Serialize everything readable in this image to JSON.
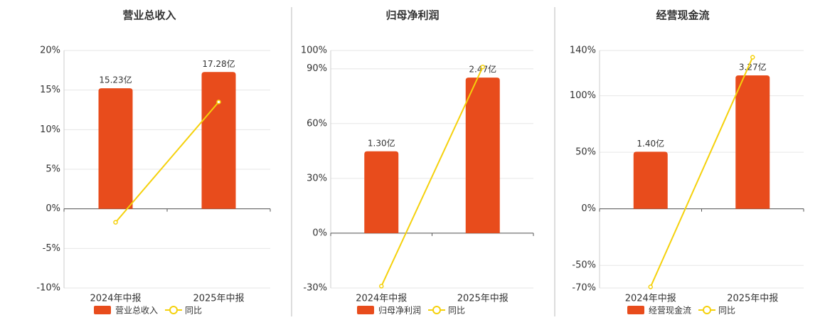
{
  "chart_data": [
    {
      "type": "bar",
      "title": "营业总收入",
      "categories": [
        "2024年中报",
        "2025年中报"
      ],
      "series": [
        {
          "name": "营业总收入",
          "color": "#e84c1c",
          "values": [
            15.23,
            17.28
          ],
          "value_labels": [
            "15.23亿",
            "17.28亿"
          ],
          "axis": "y2"
        },
        {
          "name": "同比",
          "color": "#f5d10c",
          "type": "line",
          "values": [
            -1.7,
            13.5
          ]
        }
      ],
      "ylim": [
        -10,
        20
      ],
      "yticks": [
        {
          "value": -10,
          "label": "-10%"
        },
        {
          "value": -5,
          "label": "-5%"
        },
        {
          "value": 0,
          "label": "0%"
        },
        {
          "value": 5,
          "label": "5%"
        },
        {
          "value": 10,
          "label": "10%"
        },
        {
          "value": 15,
          "label": "15%"
        },
        {
          "value": 20,
          "label": "20%"
        }
      ],
      "y2lim": [
        -10,
        20
      ],
      "grid": true
    },
    {
      "type": "bar",
      "title": "归母净利润",
      "categories": [
        "2024年中报",
        "2025年中报"
      ],
      "series": [
        {
          "name": "归母净利润",
          "color": "#e84c1c",
          "values": [
            1.3,
            2.47
          ],
          "value_labels": [
            "1.30亿",
            "2.47亿"
          ],
          "axis": "y2"
        },
        {
          "name": "同比",
          "color": "#f5d10c",
          "type": "line",
          "values": [
            -29,
            91
          ]
        }
      ],
      "ylim": [
        -30,
        100
      ],
      "yticks": [
        {
          "value": -30,
          "label": "-30%"
        },
        {
          "value": 0,
          "label": "0%"
        },
        {
          "value": 30,
          "label": "30%"
        },
        {
          "value": 60,
          "label": "60%"
        },
        {
          "value": 90,
          "label": "90%"
        },
        {
          "value": 100,
          "label": "100%"
        }
      ],
      "y2lim": [
        -0.87,
        2.9
      ],
      "grid": true
    },
    {
      "type": "bar",
      "title": "经营现金流",
      "categories": [
        "2024年中报",
        "2025年中报"
      ],
      "series": [
        {
          "name": "经营现金流",
          "color": "#e84c1c",
          "values": [
            1.4,
            3.27
          ],
          "value_labels": [
            "1.40亿",
            "3.27亿"
          ],
          "axis": "y2"
        },
        {
          "name": "同比",
          "color": "#f5d10c",
          "type": "line",
          "values": [
            -69,
            134
          ]
        }
      ],
      "ylim": [
        -70,
        140
      ],
      "yticks": [
        {
          "value": -70,
          "label": "-70%"
        },
        {
          "value": -50,
          "label": "-50%"
        },
        {
          "value": 0,
          "label": "0%"
        },
        {
          "value": 50,
          "label": "50%"
        },
        {
          "value": 100,
          "label": "100%"
        },
        {
          "value": 140,
          "label": "140%"
        }
      ],
      "y2lim": [
        -1.94,
        3.88
      ],
      "grid": true
    }
  ]
}
